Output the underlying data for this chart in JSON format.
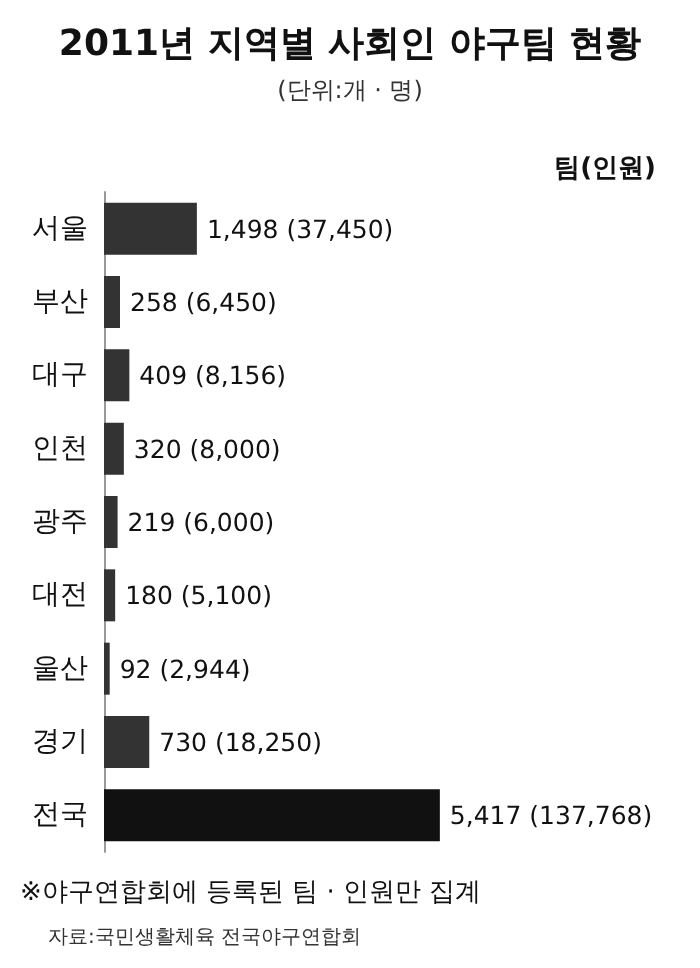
{
  "chart_data": {
    "type": "bar",
    "orientation": "horizontal",
    "title": "2011년 지역별 사회인 야구팀 현황",
    "subtitle": "(단위:개 · 명)",
    "categories": [
      "서울",
      "부산",
      "대구",
      "인천",
      "광주",
      "대전",
      "울산",
      "경기",
      "전국"
    ],
    "values": [
      1498,
      258,
      409,
      320,
      219,
      180,
      92,
      730,
      5417
    ],
    "colors": [
      "#333333",
      "#333333",
      "#333333",
      "#333333",
      "#333333",
      "#333333",
      "#333333",
      "#333333",
      "#111111"
    ],
    "value_labels": [
      "1,498 (37,450)",
      "258 (6,450)",
      "409 (8,156)",
      "320 (8,000)",
      "219 (6,000)",
      "180 (5,100)",
      "92 (2,944)",
      "730 (18,250)",
      "5,417 (137,768)"
    ],
    "annotations": [
      "팀(인원)",
      "※야구연합회에 등록된 팀 · 인원만 집계",
      "자료:국민생활체육 전국야구연합회"
    ]
  }
}
